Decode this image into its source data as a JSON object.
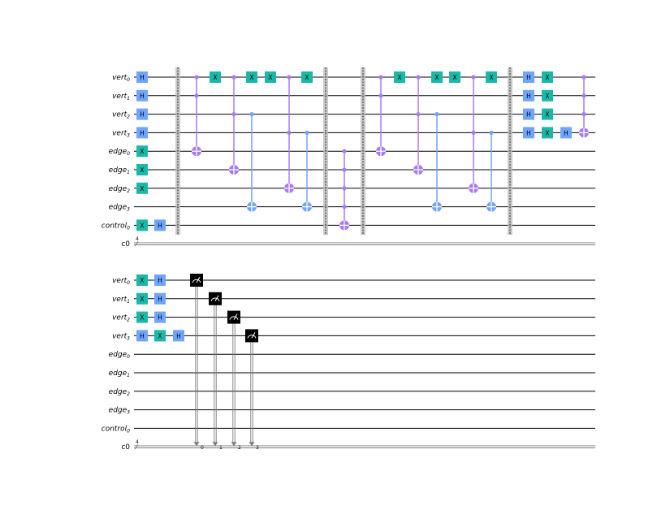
{
  "colors": {
    "h_gate": "#6fa4ff",
    "x_gate": "#18b9a8",
    "cx": "#6fa4ff",
    "mcx": "#a77aff",
    "barrier": "#bdbdbd",
    "measure": "#000000",
    "wire": "#000000",
    "cwire": "#7a7a7a"
  },
  "circuit": {
    "qubit_labels": [
      {
        "name": "vert",
        "sub": "0"
      },
      {
        "name": "vert",
        "sub": "1"
      },
      {
        "name": "vert",
        "sub": "2"
      },
      {
        "name": "vert",
        "sub": "3"
      },
      {
        "name": "edge",
        "sub": "0"
      },
      {
        "name": "edge",
        "sub": "1"
      },
      {
        "name": "edge",
        "sub": "2"
      },
      {
        "name": "edge",
        "sub": "3"
      },
      {
        "name": "control",
        "sub": "0"
      }
    ],
    "classical_label": "c0",
    "classical_width": "4",
    "gate_labels": {
      "h": "H",
      "x": "X"
    },
    "measure_bits": [
      "0",
      "1",
      "2",
      "3"
    ],
    "panels": [
      {
        "name": "panel-1",
        "ops": [
          {
            "t": "g",
            "l": "h",
            "q": 0,
            "c": 175
          },
          {
            "t": "g",
            "l": "h",
            "q": 1,
            "c": 175
          },
          {
            "t": "g",
            "l": "h",
            "q": 2,
            "c": 175
          },
          {
            "t": "g",
            "l": "h",
            "q": 3,
            "c": 175
          },
          {
            "t": "g",
            "l": "x",
            "q": 4,
            "c": 175
          },
          {
            "t": "g",
            "l": "x",
            "q": 5,
            "c": 175
          },
          {
            "t": "g",
            "l": "x",
            "q": 6,
            "c": 175
          },
          {
            "t": "g",
            "l": "x",
            "q": 8,
            "c": 175
          },
          {
            "t": "g",
            "l": "h",
            "q": 8,
            "c": 197
          },
          {
            "t": "b",
            "c": 219
          },
          {
            "t": "c",
            "k": "mcx",
            "ctrl": [
              0,
              1
            ],
            "tgt": 4,
            "c": 242
          },
          {
            "t": "g",
            "l": "x",
            "q": 0,
            "c": 265
          },
          {
            "t": "c",
            "k": "mcx",
            "ctrl": [
              0,
              2
            ],
            "tgt": 5,
            "c": 288
          },
          {
            "t": "c",
            "k": "cx",
            "ctrl": [
              2
            ],
            "tgt": 7,
            "c": 310
          },
          {
            "t": "g",
            "l": "x",
            "q": 0,
            "c": 310
          },
          {
            "t": "g",
            "l": "x",
            "q": 0,
            "c": 333
          },
          {
            "t": "c",
            "k": "mcx",
            "ctrl": [
              0,
              3
            ],
            "tgt": 6,
            "c": 356
          },
          {
            "t": "c",
            "k": "cx",
            "ctrl": [
              3
            ],
            "tgt": 7,
            "c": 378
          },
          {
            "t": "g",
            "l": "x",
            "q": 0,
            "c": 378
          },
          {
            "t": "b",
            "c": 401
          },
          {
            "t": "c",
            "k": "mcx",
            "ctrl": [
              4,
              5,
              6,
              7
            ],
            "tgt": 8,
            "c": 424
          },
          {
            "t": "b",
            "c": 447
          },
          {
            "t": "c",
            "k": "mcx",
            "ctrl": [
              0,
              1
            ],
            "tgt": 4,
            "c": 469
          },
          {
            "t": "g",
            "l": "x",
            "q": 0,
            "c": 492
          },
          {
            "t": "c",
            "k": "mcx",
            "ctrl": [
              0,
              2
            ],
            "tgt": 5,
            "c": 515
          },
          {
            "t": "c",
            "k": "cx",
            "ctrl": [
              2
            ],
            "tgt": 7,
            "c": 538
          },
          {
            "t": "g",
            "l": "x",
            "q": 0,
            "c": 538
          },
          {
            "t": "g",
            "l": "x",
            "q": 0,
            "c": 560
          },
          {
            "t": "c",
            "k": "mcx",
            "ctrl": [
              0,
              3
            ],
            "tgt": 6,
            "c": 583
          },
          {
            "t": "c",
            "k": "cx",
            "ctrl": [
              3
            ],
            "tgt": 7,
            "c": 605
          },
          {
            "t": "g",
            "l": "x",
            "q": 0,
            "c": 605
          },
          {
            "t": "b",
            "c": 628
          },
          {
            "t": "g",
            "l": "h",
            "q": 0,
            "c": 651
          },
          {
            "t": "g",
            "l": "h",
            "q": 1,
            "c": 651
          },
          {
            "t": "g",
            "l": "h",
            "q": 2,
            "c": 651
          },
          {
            "t": "g",
            "l": "h",
            "q": 3,
            "c": 651
          },
          {
            "t": "g",
            "l": "x",
            "q": 0,
            "c": 674
          },
          {
            "t": "g",
            "l": "x",
            "q": 1,
            "c": 674
          },
          {
            "t": "g",
            "l": "x",
            "q": 2,
            "c": 674
          },
          {
            "t": "g",
            "l": "x",
            "q": 3,
            "c": 674
          },
          {
            "t": "g",
            "l": "h",
            "q": 3,
            "c": 697
          },
          {
            "t": "c",
            "k": "mcx",
            "ctrl": [
              0,
              1,
              2
            ],
            "tgt": 3,
            "c": 719
          }
        ]
      },
      {
        "name": "panel-2",
        "ops": [
          {
            "t": "g",
            "l": "x",
            "q": 0,
            "c": 175
          },
          {
            "t": "g",
            "l": "x",
            "q": 1,
            "c": 175
          },
          {
            "t": "g",
            "l": "x",
            "q": 2,
            "c": 175
          },
          {
            "t": "g",
            "l": "h",
            "q": 3,
            "c": 175
          },
          {
            "t": "g",
            "l": "h",
            "q": 0,
            "c": 197
          },
          {
            "t": "g",
            "l": "h",
            "q": 1,
            "c": 197
          },
          {
            "t": "g",
            "l": "h",
            "q": 2,
            "c": 197
          },
          {
            "t": "g",
            "l": "x",
            "q": 3,
            "c": 197
          },
          {
            "t": "g",
            "l": "h",
            "q": 3,
            "c": 220
          },
          {
            "t": "m",
            "q": 0,
            "bit": 0,
            "c": 242
          },
          {
            "t": "m",
            "q": 1,
            "bit": 1,
            "c": 265
          },
          {
            "t": "m",
            "q": 2,
            "bit": 2,
            "c": 288
          },
          {
            "t": "m",
            "q": 3,
            "bit": 3,
            "c": 310
          }
        ]
      }
    ]
  }
}
